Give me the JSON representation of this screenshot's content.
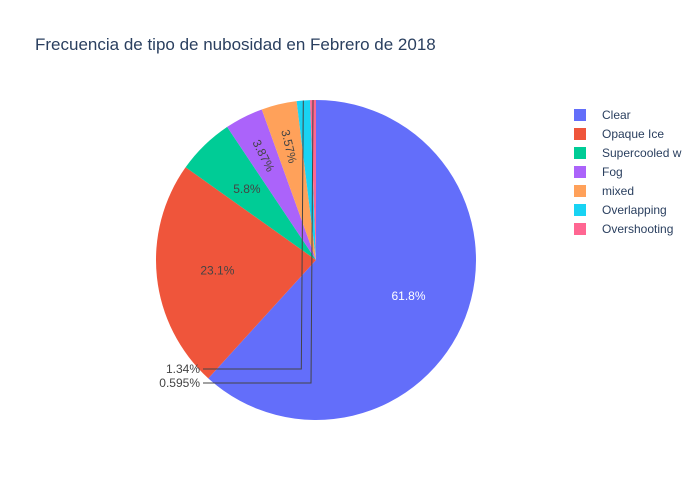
{
  "chart_data": {
    "type": "pie",
    "title": "Frecuencia de tipo de nubosidad en Febrero de 2018",
    "labels": [
      "Clear",
      "Opaque Ice",
      "Supercooled w",
      "Fog",
      "mixed",
      "Overlapping",
      "Overshooting"
    ],
    "values": [
      61.8,
      23.1,
      5.8,
      3.87,
      3.57,
      1.34,
      0.595
    ],
    "percent_labels": [
      "61.8%",
      "23.1%",
      "5.8%",
      "3.87%",
      "3.57%",
      "1.34%",
      "0.595%"
    ],
    "colors": [
      "#636efa",
      "#ef553b",
      "#00cc96",
      "#ab63fa",
      "#ffa15a",
      "#19d3f3",
      "#ff6692"
    ],
    "legend_position": "top-right",
    "direction": "clockwise"
  }
}
